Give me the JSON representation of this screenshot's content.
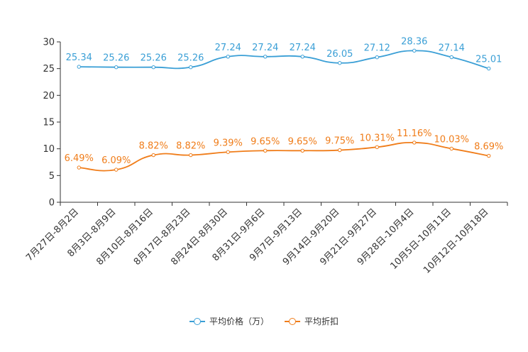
{
  "chart_data": {
    "type": "line",
    "categories": [
      "7月27日-8月2日",
      "8月3日-8月9日",
      "8月10日-8月16日",
      "8月17日-8月23日",
      "8月24日-8月30日",
      "8月31日-9月6日",
      "9月7日-9月13日",
      "9月14日-9月20日",
      "9月21日-9月27日",
      "9月28日-10月4日",
      "10月5日-10月11日",
      "10月12日-10月18日"
    ],
    "series": [
      {
        "name": "平均价格（万）",
        "color": "#3a9fd6",
        "values": [
          25.34,
          25.26,
          25.26,
          25.26,
          27.24,
          27.24,
          27.24,
          26.05,
          27.12,
          28.36,
          27.14,
          25.01
        ],
        "labels": [
          "25.34",
          "25.26",
          "25.26",
          "25.26",
          "27.24",
          "27.24",
          "27.24",
          "26.05",
          "27.12",
          "28.36",
          "27.14",
          "25.01"
        ]
      },
      {
        "name": "平均折扣",
        "color": "#f07d1a",
        "values": [
          6.49,
          6.09,
          8.82,
          8.82,
          9.39,
          9.65,
          9.65,
          9.75,
          10.31,
          11.16,
          10.03,
          8.69
        ],
        "labels": [
          "6.49%",
          "6.09%",
          "8.82%",
          "8.82%",
          "9.39%",
          "9.65%",
          "9.65%",
          "9.75%",
          "10.31%",
          "11.16%",
          "10.03%",
          "8.69%"
        ]
      }
    ],
    "y_ticks": [
      0,
      5,
      10,
      15,
      20,
      25,
      30
    ],
    "ylim": [
      0,
      30
    ],
    "legend_position": "bottom-center"
  }
}
